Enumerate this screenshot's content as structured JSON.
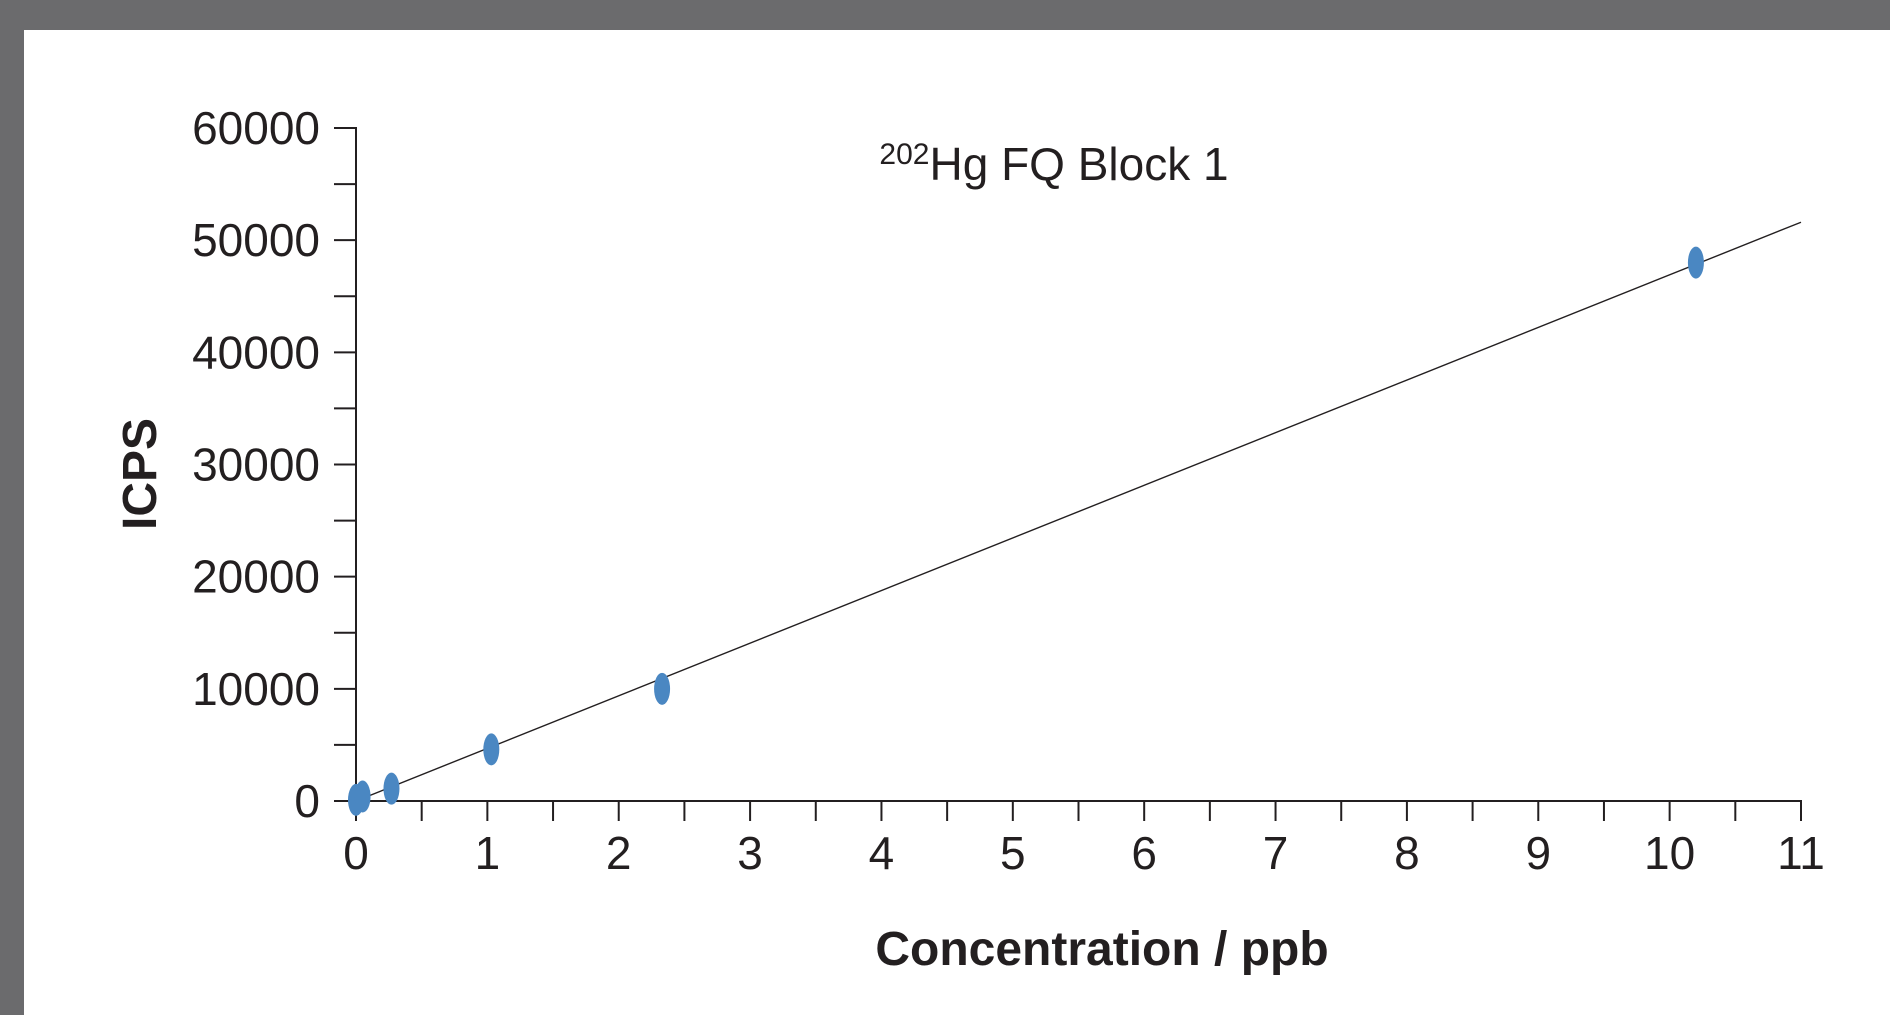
{
  "chart_data": {
    "type": "scatter",
    "title": "Hg FQ Block 1",
    "title_superscript": "202",
    "xlabel": "Concentration / ppb",
    "ylabel": "ICPS",
    "xlim": [
      0,
      11
    ],
    "ylim": [
      0,
      60000
    ],
    "x_ticks": [
      0,
      1,
      2,
      3,
      4,
      5,
      6,
      7,
      8,
      9,
      10,
      11
    ],
    "y_ticks": [
      0,
      10000,
      20000,
      30000,
      40000,
      50000,
      60000
    ],
    "points": [
      {
        "x": 0,
        "y": 100
      },
      {
        "x": 0.05,
        "y": 400
      },
      {
        "x": 0.27,
        "y": 1100
      },
      {
        "x": 1.03,
        "y": 4600
      },
      {
        "x": 2.33,
        "y": 10000
      },
      {
        "x": 10.2,
        "y": 48000
      }
    ],
    "fit_line": {
      "x": [
        0,
        11
      ],
      "y": [
        0,
        51600
      ]
    },
    "point_color": "#4a87c2",
    "line_color": "#231f20",
    "grid": false,
    "legend": "none"
  }
}
